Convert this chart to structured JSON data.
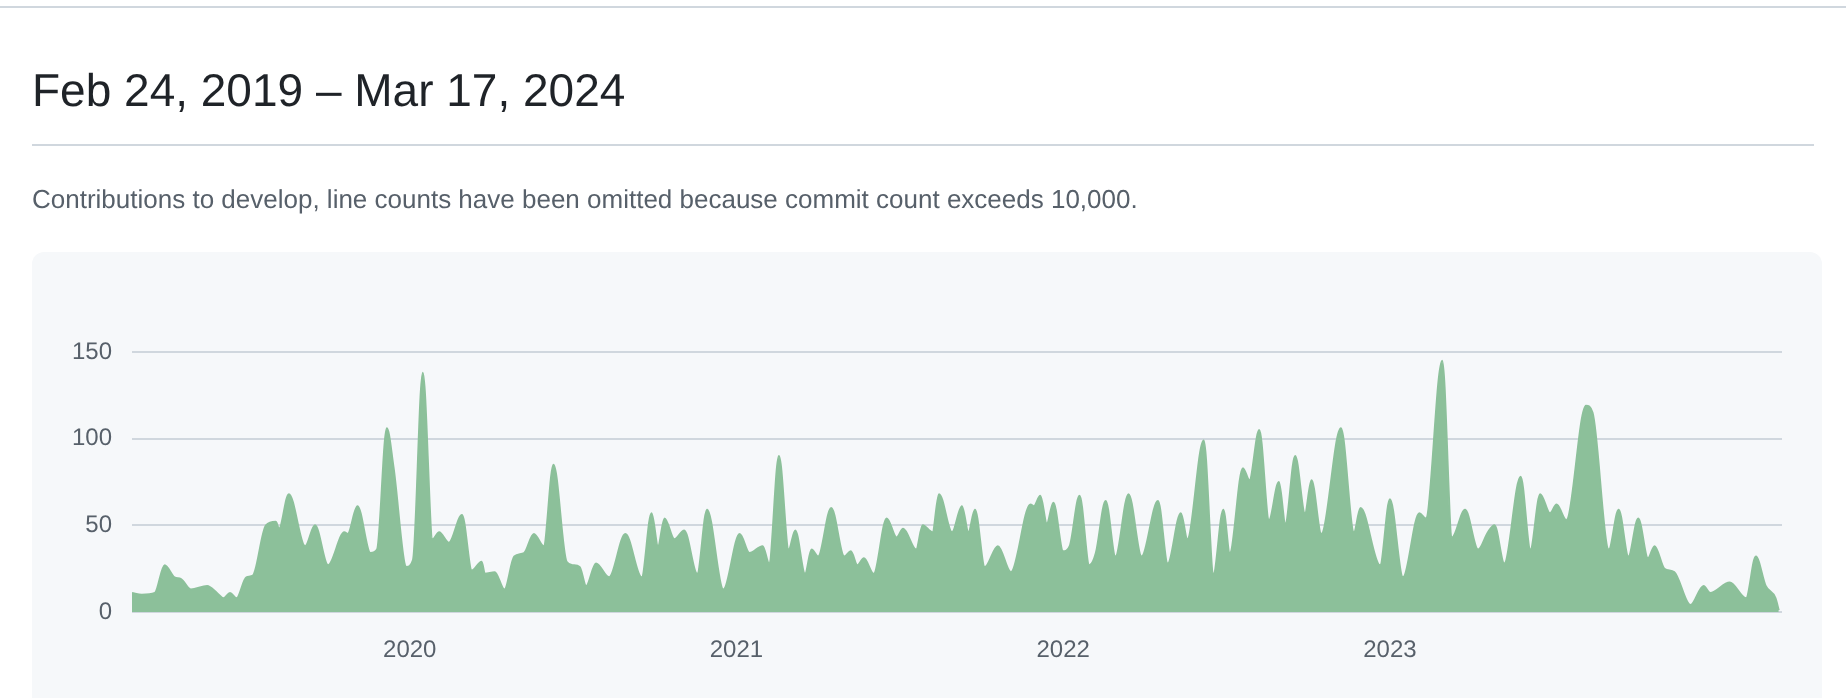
{
  "chart_data": {
    "type": "area",
    "title": "Feb 24, 2019 – Mar 17, 2024",
    "subtitle": "Contributions to develop, line counts have been omitted because commit count exceeds 10,000.",
    "color": "#8cc09a",
    "grid": "y",
    "xlim": [
      2019.15,
      2024.2
    ],
    "xticks": [
      2020,
      2021,
      2022,
      2023
    ],
    "ylim": [
      0,
      150
    ],
    "yticks": [
      0,
      50,
      100,
      150
    ],
    "x": [
      2019.15,
      2019.18,
      2019.22,
      2019.25,
      2019.28,
      2019.3,
      2019.33,
      2019.38,
      2019.41,
      2019.43,
      2019.45,
      2019.47,
      2019.5,
      2019.52,
      2019.56,
      2019.59,
      2019.6,
      2019.63,
      2019.68,
      2019.71,
      2019.75,
      2019.8,
      2019.81,
      2019.84,
      2019.88,
      2019.9,
      2019.93,
      2019.95,
      2019.99,
      2020.01,
      2020.04,
      2020.07,
      2020.09,
      2020.12,
      2020.16,
      2020.19,
      2020.22,
      2020.23,
      2020.26,
      2020.29,
      2020.32,
      2020.35,
      2020.38,
      2020.41,
      2020.44,
      2020.48,
      2020.5,
      2020.52,
      2020.54,
      2020.57,
      2020.61,
      2020.66,
      2020.71,
      2020.74,
      2020.76,
      2020.78,
      2020.81,
      2020.84,
      2020.88,
      2020.91,
      2020.96,
      2021.01,
      2021.04,
      2021.08,
      2021.1,
      2021.13,
      2021.16,
      2021.18,
      2021.21,
      2021.23,
      2021.25,
      2021.29,
      2021.33,
      2021.35,
      2021.37,
      2021.39,
      2021.42,
      2021.46,
      2021.49,
      2021.51,
      2021.55,
      2021.57,
      2021.6,
      2021.62,
      2021.66,
      2021.69,
      2021.71,
      2021.73,
      2021.76,
      2021.8,
      2021.84,
      2021.9,
      2021.91,
      2021.93,
      2021.95,
      2021.97,
      2022.0,
      2022.02,
      2022.05,
      2022.08,
      2022.1,
      2022.13,
      2022.16,
      2022.2,
      2022.24,
      2022.29,
      2022.32,
      2022.36,
      2022.38,
      2022.43,
      2022.46,
      2022.49,
      2022.51,
      2022.55,
      2022.57,
      2022.6,
      2022.63,
      2022.66,
      2022.68,
      2022.71,
      2022.74,
      2022.76,
      2022.79,
      2022.85,
      2022.89,
      2022.91,
      2022.97,
      2023.0,
      2023.04,
      2023.09,
      2023.11,
      2023.16,
      2023.19,
      2023.23,
      2023.27,
      2023.3,
      2023.32,
      2023.35,
      2023.4,
      2023.43,
      2023.46,
      2023.49,
      2023.51,
      2023.54,
      2023.6,
      2023.62,
      2023.67,
      2023.7,
      2023.73,
      2023.76,
      2023.79,
      2023.81,
      2023.84,
      2023.87,
      2023.92,
      2023.96,
      2023.98,
      2024.04,
      2024.09,
      2024.12,
      2024.15,
      2024.18,
      2024.19
    ],
    "values": [
      11,
      10,
      11,
      27,
      20,
      19,
      13,
      15,
      11,
      8,
      11,
      8,
      20,
      21,
      50,
      52,
      48,
      68,
      38,
      50,
      27,
      46,
      45,
      61,
      34,
      36,
      106,
      84,
      26,
      30,
      138,
      42,
      46,
      40,
      56,
      24,
      29,
      22,
      23,
      13,
      32,
      34,
      45,
      38,
      85,
      29,
      27,
      26,
      15,
      28,
      20,
      45,
      20,
      57,
      38,
      54,
      42,
      47,
      22,
      59,
      13,
      45,
      34,
      38,
      28,
      90,
      36,
      47,
      22,
      36,
      32,
      60,
      32,
      35,
      27,
      31,
      22,
      54,
      43,
      48,
      36,
      50,
      46,
      68,
      46,
      61,
      46,
      59,
      26,
      38,
      23,
      62,
      61,
      67,
      51,
      63,
      35,
      38,
      67,
      27,
      34,
      64,
      32,
      68,
      32,
      64,
      28,
      57,
      42,
      99,
      22,
      59,
      34,
      83,
      76,
      105,
      53,
      75,
      51,
      90,
      57,
      76,
      45,
      106,
      46,
      60,
      27,
      65,
      20,
      57,
      54,
      145,
      43,
      59,
      36,
      46,
      50,
      28,
      78,
      36,
      68,
      57,
      62,
      53,
      119,
      115,
      36,
      59,
      32,
      54,
      31,
      38,
      25,
      23,
      4,
      15,
      11,
      17,
      8,
      32,
      15,
      8,
      1
    ]
  }
}
